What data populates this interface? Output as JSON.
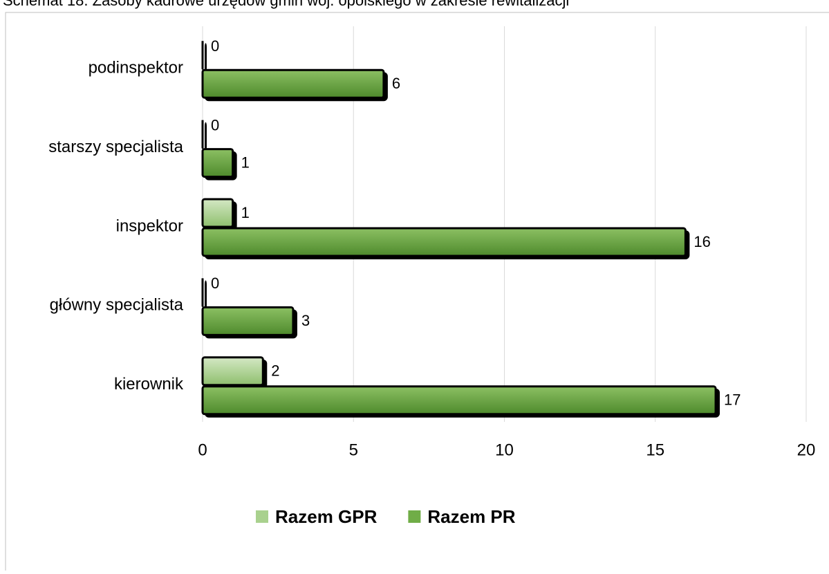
{
  "chart_data": {
    "type": "bar",
    "orientation": "horizontal",
    "title": "Schemat 18. Zasoby kadrowe urzędów gmin woj. opolskiego w zakresie rewitalizacji",
    "categories": [
      "podinspektor",
      "starszy specjalista",
      "inspektor",
      "główny specjalista",
      "kierownik"
    ],
    "series": [
      {
        "name": "Razem GPR",
        "color": "#a9d18e",
        "values": [
          0,
          0,
          1,
          0,
          2
        ]
      },
      {
        "name": "Razem PR",
        "color": "#70ad47",
        "values": [
          6,
          1,
          16,
          3,
          17
        ]
      }
    ],
    "xlim": [
      0,
      20
    ],
    "xticks": [
      0,
      5,
      10,
      15,
      20
    ],
    "grid": true,
    "legend": "bottom"
  }
}
